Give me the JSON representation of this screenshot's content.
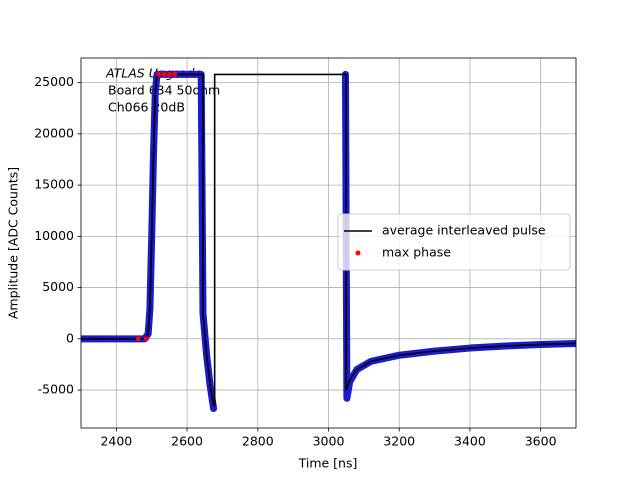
{
  "chart_data": {
    "type": "line",
    "xlabel": "Time [ns]",
    "ylabel": "Amplitude [ADC Counts]",
    "annotations": [
      "ATLAS Upgrade",
      "Board 634 50ohm",
      "Ch066 20dB"
    ],
    "xlim": [
      2300,
      3700
    ],
    "xticks": [
      2400,
      2600,
      2800,
      3000,
      3200,
      3400,
      3600
    ],
    "ylim": [
      -8700,
      27400
    ],
    "yticks": [
      -5000,
      0,
      5000,
      10000,
      15000,
      20000,
      25000
    ],
    "grid": true,
    "legend": "center right",
    "series": [
      {
        "color": "#1a1ad0",
        "marker": "band",
        "x": [
          2300,
          2400,
          2480,
          2490,
          2495,
          2500,
          2505,
          2510,
          2515,
          2640,
          2645,
          2655,
          2665,
          2675,
          2678,
          3048,
          3052,
          3060,
          3080,
          3120,
          3200,
          3300,
          3400,
          3500,
          3600,
          3700
        ],
        "values": [
          0,
          0,
          0,
          500,
          3000,
          10000,
          18000,
          24000,
          25800,
          25800,
          2500,
          -1500,
          -4500,
          -6800,
          null,
          25800,
          -5800,
          -4200,
          -3000,
          -2200,
          -1600,
          -1200,
          -900,
          -700,
          -550,
          -450
        ]
      },
      {
        "name": "average interleaved pulse",
        "color": "#000000",
        "marker": "line",
        "x": [
          2300,
          2480,
          2490,
          2495,
          2500,
          2505,
          2510,
          2515,
          2645,
          2645,
          2655,
          2665,
          2675,
          2678,
          2678,
          3050,
          3050,
          3060,
          3080,
          3120,
          3200,
          3300,
          3400,
          3500,
          3600,
          3700
        ],
        "values": [
          0,
          0,
          500,
          3000,
          10000,
          18000,
          24000,
          25800,
          25800,
          2500,
          -1500,
          -4500,
          -6500,
          -6500,
          25800,
          25800,
          -5000,
          -4000,
          -3000,
          -2200,
          -1600,
          -1200,
          -900,
          -700,
          -550,
          -450
        ]
      },
      {
        "name": "max phase",
        "color": "#ff0000",
        "marker": "point",
        "x": [
          2462,
          2485,
          2520,
          2535,
          2550,
          2565
        ],
        "values": [
          0,
          0,
          25800,
          25800,
          25800,
          25800
        ]
      }
    ]
  }
}
